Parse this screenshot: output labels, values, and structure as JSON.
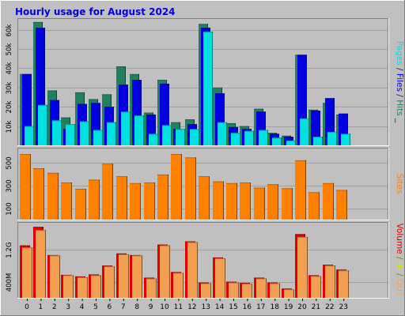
{
  "chart_data": {
    "type": "bar",
    "title": "Hourly usage for August 2024",
    "categories": [
      "0",
      "1",
      "2",
      "3",
      "4",
      "5",
      "6",
      "7",
      "8",
      "9",
      "10",
      "11",
      "12",
      "13",
      "14",
      "15",
      "16",
      "17",
      "18",
      "19",
      "20",
      "21",
      "22",
      "23"
    ],
    "panels": [
      {
        "id": "requests",
        "ylim": [
          0,
          66000
        ],
        "yticks": [
          {
            "value": 10000,
            "label": "10k"
          },
          {
            "value": 20000,
            "label": "20k"
          },
          {
            "value": 30000,
            "label": "30k"
          },
          {
            "value": 40000,
            "label": "40k"
          },
          {
            "value": 50000,
            "label": "50k"
          },
          {
            "value": 60000,
            "label": "60k"
          }
        ],
        "axis_label_parts": [
          {
            "text": "Pages",
            "color": "#00e0e0"
          },
          {
            "text": " / ",
            "color": "#1a1a7a"
          },
          {
            "text": "Files",
            "color": "#0000e0"
          },
          {
            "text": " / ",
            "color": "#1a1a7a"
          },
          {
            "text": "Hits",
            "color": "#208060"
          },
          {
            "text": " _",
            "color": "#1a1a7a"
          }
        ],
        "series": [
          {
            "name": "Hits",
            "color": "#208060",
            "values": [
              37000,
              64000,
              28500,
              14500,
              27500,
              24000,
              26500,
              41000,
              37000,
              17000,
              34000,
              12000,
              13500,
              63000,
              30000,
              11500,
              10000,
              19000,
              6500,
              5000,
              47000,
              18500,
              22000,
              16000
            ]
          },
          {
            "name": "Files",
            "color": "#0000e0",
            "values": [
              37000,
              61000,
              23500,
              8500,
              21500,
              22000,
              20000,
              31500,
              34000,
              16000,
              32000,
              8500,
              11000,
              61000,
              27000,
              9500,
              8500,
              17500,
              6000,
              4500,
              47000,
              18000,
              24500,
              16500
            ]
          },
          {
            "name": "Pages",
            "color": "#00e0e0",
            "values": [
              10000,
              21000,
              13000,
              11000,
              12500,
              8000,
              12000,
              17500,
              15500,
              6000,
              10500,
              8500,
              8500,
              59000,
              12000,
              6500,
              7500,
              8000,
              4000,
              2500,
              14000,
              4500,
              7000,
              6000
            ]
          }
        ]
      },
      {
        "id": "sites",
        "ylim": [
          0,
          630
        ],
        "yticks": [
          {
            "value": 100,
            "label": "100"
          },
          {
            "value": 300,
            "label": "300"
          },
          {
            "value": 500,
            "label": "500"
          }
        ],
        "axis_label_parts": [
          {
            "text": "Sites",
            "color": "#ff8000"
          }
        ],
        "series": [
          {
            "name": "Sites",
            "color": "#ff8000",
            "values": [
              575,
              450,
              410,
              325,
              270,
              350,
              490,
              380,
              320,
              325,
              395,
              575,
              545,
              380,
              335,
              320,
              325,
              280,
              310,
              275,
              520,
              240,
              320,
              260
            ]
          }
        ]
      },
      {
        "id": "volume",
        "ylim": [
          0,
          1880
        ],
        "yticks": [
          {
            "value": 400,
            "label": "400M"
          },
          {
            "value": 1200,
            "label": "1.2G"
          }
        ],
        "axis_label_parts": [
          {
            "text": "Volume",
            "color": "#e00000"
          },
          {
            "text": " / ",
            "color": "#808000"
          },
          {
            "text": "IN",
            "color": "#e0e000"
          },
          {
            "text": " / ",
            "color": "#808000"
          },
          {
            "text": "OUT",
            "color": "#f0a050"
          }
        ],
        "series": [
          {
            "name": "Volume",
            "color": "#e00000",
            "values": [
              1300,
              1760,
              1060,
              570,
              530,
              580,
              800,
              1100,
              1060,
              500,
              1320,
              640,
              1400,
              380,
              1000,
              400,
              370,
              500,
              380,
              230,
              1580,
              560,
              820,
              700
            ]
          },
          {
            "name": "OUT",
            "color": "#f0a050",
            "values": [
              1250,
              1680,
              1050,
              560,
              510,
              560,
              780,
              1080,
              1050,
              480,
              1300,
              620,
              1380,
              360,
              980,
              380,
              350,
              480,
              360,
              210,
              1510,
              540,
              800,
              680
            ]
          }
        ]
      }
    ]
  }
}
